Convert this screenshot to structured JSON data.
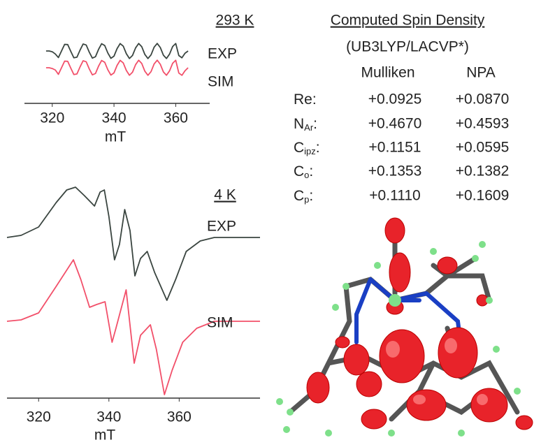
{
  "chart_data": [
    {
      "type": "line",
      "title": "293 K",
      "x_label": "mT",
      "x": [
        318,
        319,
        320,
        321,
        322,
        323,
        324,
        325,
        326,
        327,
        328,
        329,
        330,
        331,
        332,
        333,
        334,
        335,
        336,
        337,
        338,
        339,
        340,
        341,
        342,
        343,
        344,
        345,
        346,
        347,
        348,
        349,
        350,
        351,
        352,
        353,
        354,
        355,
        356,
        357,
        358,
        359,
        360,
        361,
        362,
        363,
        364
      ],
      "series": [
        {
          "name": "EXP",
          "color": "#3a4540",
          "values": [
            0,
            0,
            -0.1,
            -0.4,
            -0.87,
            0,
            0.87,
            0.85,
            -0.05,
            -0.9,
            -0.82,
            0.11,
            0.92,
            0.79,
            -0.16,
            -0.94,
            -0.76,
            0.21,
            0.96,
            0.72,
            -0.26,
            -0.97,
            -0.68,
            0.31,
            0.98,
            0.64,
            -0.36,
            -0.99,
            -0.59,
            0.41,
            0.99,
            0.56,
            -0.46,
            -1,
            -0.51,
            0.5,
            1,
            0.46,
            -0.55,
            -0.99,
            -0.41,
            0.59,
            0.99,
            -0.6,
            -0.9,
            -0.3,
            0
          ]
        },
        {
          "name": "SIM",
          "color": "#f2506a",
          "values": [
            0,
            0,
            -0.1,
            -0.3,
            -0.87,
            0,
            0.87,
            0.85,
            -0.05,
            -0.9,
            -0.82,
            0.11,
            0.92,
            0.79,
            -0.16,
            -0.94,
            -0.76,
            0.21,
            0.96,
            0.72,
            -0.26,
            -0.97,
            -0.68,
            0.31,
            0.98,
            0.64,
            -0.36,
            -0.99,
            -0.59,
            0.41,
            0.99,
            0.56,
            -0.46,
            -1,
            -0.51,
            0.5,
            1,
            0.46,
            -0.55,
            -0.99,
            -0.41,
            0.59,
            0.99,
            -0.7,
            -1,
            -0.4,
            0
          ]
        }
      ],
      "xlim": [
        311,
        371
      ],
      "xticks": [
        320,
        340,
        360
      ],
      "ylim": [
        -1.2,
        1.2
      ]
    },
    {
      "type": "line",
      "title": "4 K",
      "x_label": "mT",
      "series": [
        {
          "name": "EXP",
          "color": "#3a4540",
          "x": [
            311,
            315,
            320,
            325,
            328,
            330.5,
            333,
            335.9,
            337.5,
            338.7,
            340,
            341.6,
            343,
            344.5,
            346,
            347.4,
            349,
            350.9,
            353,
            356.5,
            359,
            362,
            366,
            370,
            383
          ],
          "values": [
            0,
            0.3,
            1.5,
            5,
            6.8,
            7.2,
            6,
            4.5,
            6.5,
            6.8,
            3,
            -3.2,
            -1,
            4,
            1,
            -5.5,
            -3,
            -2,
            -5,
            -9,
            -6,
            -2,
            -0.5,
            0,
            0
          ]
        },
        {
          "name": "SIM",
          "color": "#f2506a",
          "x": [
            311,
            315,
            320,
            325,
            329.9,
            332,
            334.5,
            336.5,
            338.9,
            340.9,
            342,
            344.9,
            347.2,
            349,
            351.8,
            353.5,
            355.8,
            358,
            361,
            365,
            370,
            383
          ],
          "values": [
            0,
            0.2,
            1.2,
            5,
            8.8,
            6,
            2,
            2.4,
            2.8,
            -3,
            -1,
            4.5,
            -6,
            -2,
            -0.5,
            -4,
            -10.5,
            -7,
            -3,
            -1,
            0,
            0
          ]
        }
      ],
      "xlim": [
        311,
        383
      ],
      "xticks": [
        320,
        340,
        360
      ],
      "ylim": [
        -11,
        11
      ]
    }
  ],
  "table": {
    "title": "Computed Spin Density",
    "subtitle": "(UB3LYP/LACVP*)",
    "columns": [
      "Mulliken",
      "NPA"
    ],
    "rows": [
      {
        "atom": "Re",
        "sub": "",
        "sep": ":",
        "mulliken": "+0.0925",
        "npa": "+0.0870"
      },
      {
        "atom": "N",
        "sub": "Ar",
        "sep": ":",
        "mulliken": "+0.4670",
        "npa": "+0.4593"
      },
      {
        "atom": "C",
        "sub": "ipz",
        "sep": ":",
        "mulliken": "+0.1151",
        "npa": "+0.0595"
      },
      {
        "atom": "C",
        "sub": "o",
        "sep": ":",
        "mulliken": "+0.1353",
        "npa": "+0.1382"
      },
      {
        "atom": "C",
        "sub": "p",
        "sep": ":",
        "mulliken": "+0.1110",
        "npa": "+0.1609"
      }
    ]
  }
}
